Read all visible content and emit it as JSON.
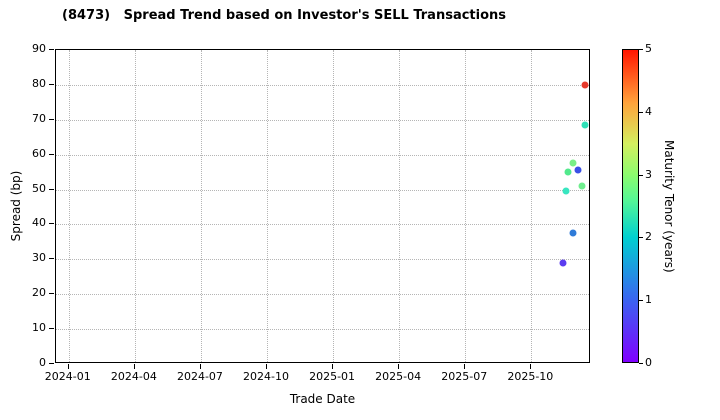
{
  "title": "(8473)   Spread Trend based on Investor's SELL Transactions",
  "chart_data": {
    "type": "scatter",
    "xlabel": "Trade Date",
    "ylabel": "Spread (bp)",
    "x_tick_labels": [
      "2024-01",
      "2024-04",
      "2024-07",
      "2024-10",
      "2025-01",
      "2025-04",
      "2025-07",
      "2025-10"
    ],
    "x_domain": [
      "2023-12-14",
      "2025-12-23"
    ],
    "ylim": [
      0,
      90
    ],
    "y_ticks": [
      0,
      10,
      20,
      30,
      40,
      50,
      60,
      70,
      80,
      90
    ],
    "grid": "dotted",
    "legend_position": "none",
    "colorbar": {
      "label": "Maturity Tenor (years)",
      "min": 0,
      "max": 5,
      "ticks": [
        0,
        1,
        2,
        3,
        4,
        5
      ],
      "gradient": [
        [
          0,
          "#8000ff"
        ],
        [
          20,
          "#3a64f0"
        ],
        [
          40,
          "#00d0d0"
        ],
        [
          52,
          "#56f795"
        ],
        [
          60,
          "#8cfc6e"
        ],
        [
          70,
          "#d4ef5f"
        ],
        [
          83,
          "#ffa33c"
        ],
        [
          100,
          "#ff1500"
        ]
      ]
    },
    "points": [
      {
        "date": "2025-12-15",
        "spread": 80.0,
        "tenor": 5.0,
        "color": "#e6392b"
      },
      {
        "date": "2025-12-15",
        "spread": 68.5,
        "tenor": 2.3,
        "color": "#2fe0b8"
      },
      {
        "date": "2025-11-28",
        "spread": 57.5,
        "tenor": 2.8,
        "color": "#7aef86"
      },
      {
        "date": "2025-11-21",
        "spread": 55.0,
        "tenor": 2.5,
        "color": "#52e98c"
      },
      {
        "date": "2025-12-05",
        "spread": 55.5,
        "tenor": 1.0,
        "color": "#3a50e6"
      },
      {
        "date": "2025-12-10",
        "spread": 51.0,
        "tenor": 2.8,
        "color": "#6fee8e"
      },
      {
        "date": "2025-11-19",
        "spread": 49.5,
        "tenor": 2.2,
        "color": "#38e6c0"
      },
      {
        "date": "2025-11-28",
        "spread": 37.5,
        "tenor": 1.1,
        "color": "#2f7bd8"
      },
      {
        "date": "2025-11-15",
        "spread": 29.0,
        "tenor": 0.4,
        "color": "#5a3cf0"
      }
    ]
  }
}
